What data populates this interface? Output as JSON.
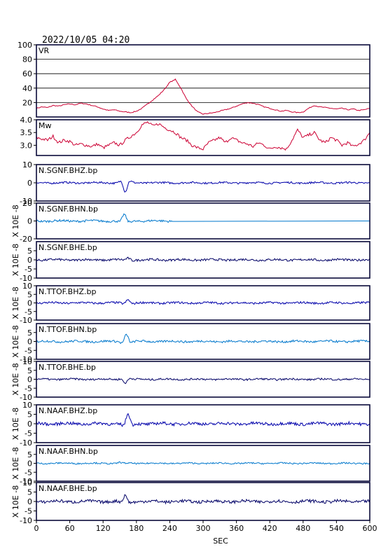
{
  "header": {
    "datetime": "2022/10/05 04:20"
  },
  "chart_data": [
    {
      "type": "line",
      "label": "VR",
      "ylim": [
        0,
        100
      ],
      "yticks": [
        20,
        40,
        60,
        80,
        100
      ],
      "grid": true,
      "color": "#cc0033",
      "x": [
        0,
        10,
        20,
        30,
        40,
        50,
        60,
        70,
        80,
        90,
        100,
        110,
        120,
        130,
        140,
        150,
        160,
        170,
        180,
        190,
        200,
        210,
        220,
        230,
        240,
        250,
        260,
        270,
        280,
        290,
        300,
        310,
        320,
        330,
        340,
        350,
        360,
        370,
        380,
        390,
        400,
        410,
        420,
        430,
        440,
        450,
        460,
        470,
        480,
        490,
        500,
        510,
        520,
        530,
        540,
        550,
        560,
        570,
        580,
        590,
        600
      ],
      "values": [
        12,
        14,
        13,
        16,
        15,
        17,
        18,
        17,
        19,
        18,
        16,
        14,
        11,
        9,
        10,
        8,
        7,
        6,
        8,
        12,
        18,
        24,
        30,
        38,
        48,
        52,
        40,
        25,
        15,
        7,
        4,
        5,
        6,
        8,
        10,
        12,
        15,
        18,
        20,
        19,
        17,
        14,
        12,
        10,
        8,
        9,
        7,
        6,
        7,
        12,
        16,
        14,
        13,
        12,
        11,
        12,
        10,
        11,
        9,
        10,
        12
      ]
    },
    {
      "type": "line",
      "label": "Mw",
      "ylim": [
        2.6,
        4.0
      ],
      "yticks": [
        3.0,
        3.5,
        4.0
      ],
      "ytick_labels": [
        "3.0",
        "3.5",
        "4.0"
      ],
      "grid": false,
      "color": "#cc0033",
      "x": [
        0,
        10,
        20,
        30,
        40,
        50,
        60,
        70,
        80,
        90,
        100,
        110,
        120,
        130,
        140,
        150,
        160,
        170,
        180,
        190,
        200,
        210,
        220,
        230,
        240,
        250,
        260,
        270,
        280,
        290,
        300,
        310,
        320,
        330,
        340,
        350,
        360,
        370,
        380,
        390,
        400,
        410,
        420,
        430,
        440,
        450,
        460,
        470,
        480,
        490,
        500,
        510,
        520,
        530,
        540,
        550,
        560,
        570,
        580,
        590,
        600
      ],
      "values": [
        3.3,
        3.25,
        3.2,
        3.35,
        3.1,
        3.2,
        3.15,
        3.0,
        3.05,
        3.0,
        2.95,
        3.05,
        2.9,
        3.0,
        3.1,
        3.0,
        3.2,
        3.35,
        3.5,
        3.8,
        3.9,
        3.75,
        3.85,
        3.7,
        3.6,
        3.5,
        3.3,
        3.2,
        3.0,
        2.9,
        2.85,
        3.1,
        3.2,
        3.3,
        3.1,
        3.3,
        3.2,
        3.1,
        3.05,
        2.95,
        3.1,
        3.0,
        2.85,
        2.95,
        2.9,
        2.85,
        3.2,
        3.6,
        3.3,
        3.4,
        3.5,
        3.2,
        3.1,
        3.3,
        3.2,
        3.0,
        3.1,
        2.95,
        3.05,
        3.2,
        3.5
      ]
    },
    {
      "type": "line",
      "label": "N.SGNF.BHZ.bp",
      "ylim": [
        -10,
        10
      ],
      "yticks": [
        -10,
        0,
        10
      ],
      "color": "#0000aa",
      "ylabel": ""
    },
    {
      "type": "line",
      "label": "N.SGNF.BHN.bp",
      "ylim": [
        -20,
        20
      ],
      "yticks": [
        -20,
        0,
        20
      ],
      "color": "#0077cc",
      "ylabel": "X 10E -8"
    },
    {
      "type": "line",
      "label": "N.SGNF.BHE.bp",
      "ylim": [
        -10,
        10
      ],
      "yticks": [
        -10,
        -5,
        0,
        5
      ],
      "color": "#000066",
      "ylabel": "X 10E -8"
    },
    {
      "type": "line",
      "label": "N.TTOF.BHZ.bp",
      "ylim": [
        -10,
        10
      ],
      "yticks": [
        -10,
        -5,
        0,
        5,
        10
      ],
      "color": "#0000aa",
      "ylabel": "X 10E -8"
    },
    {
      "type": "line",
      "label": "N.TTOF.BHN.bp",
      "ylim": [
        -10,
        10
      ],
      "yticks": [
        -10,
        -5,
        0,
        5
      ],
      "color": "#0077cc",
      "ylabel": "X 10E -8"
    },
    {
      "type": "line",
      "label": "N.TTOF.BHE.bp",
      "ylim": [
        -10,
        10
      ],
      "yticks": [
        -10,
        -5,
        0,
        5,
        10
      ],
      "color": "#000066",
      "ylabel": "X 10E -8"
    },
    {
      "type": "line",
      "label": "N.NAAF.BHZ.bp",
      "ylim": [
        -10,
        10
      ],
      "yticks": [
        -10,
        -5,
        0,
        5,
        10
      ],
      "color": "#0000aa",
      "ylabel": "X 10E -8"
    },
    {
      "type": "line",
      "label": "N.NAAF.BHN.bp",
      "ylim": [
        -10,
        10
      ],
      "yticks": [
        -10,
        -5,
        0,
        5
      ],
      "color": "#0077cc",
      "ylabel": "X 10E -8"
    },
    {
      "type": "line",
      "label": "N.NAAF.BHE.bp",
      "ylim": [
        -10,
        10
      ],
      "yticks": [
        -10,
        -5,
        0,
        5,
        10
      ],
      "color": "#000066",
      "ylabel": "X 10E -8"
    }
  ],
  "xaxis": {
    "label": "SEC",
    "ticks": [
      0,
      60,
      120,
      180,
      240,
      300,
      360,
      420,
      480,
      540,
      600
    ]
  },
  "waveforms": [
    {
      "noise": 0.5,
      "pulse_at": 160,
      "pulse_amp": -5
    },
    {
      "noise": 1.2,
      "pulse_at": 158,
      "pulse_amp": 7
    },
    {
      "noise": 0.6,
      "pulse_at": 165,
      "pulse_amp": 1
    },
    {
      "noise": 0.6,
      "pulse_at": 165,
      "pulse_amp": 2
    },
    {
      "noise": 0.6,
      "pulse_at": 162,
      "pulse_amp": 4
    },
    {
      "noise": 0.5,
      "pulse_at": 160,
      "pulse_amp": -2
    },
    {
      "noise": 0.8,
      "pulse_at": 165,
      "pulse_amp": 5
    },
    {
      "noise": 0.4,
      "pulse_at": 150,
      "pulse_amp": 0.5
    },
    {
      "noise": 0.8,
      "pulse_at": 160,
      "pulse_amp": 3
    }
  ]
}
